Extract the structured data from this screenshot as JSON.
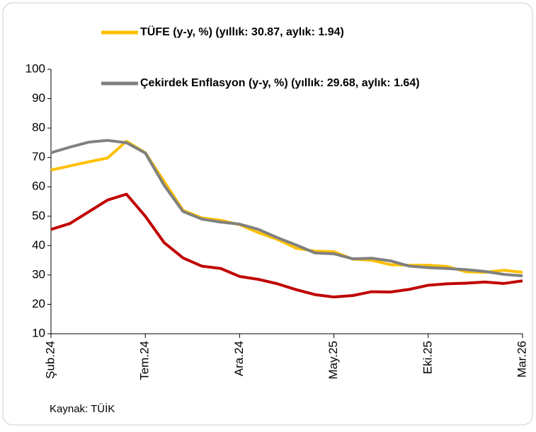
{
  "chart_data": {
    "type": "line",
    "categories": [
      "Şub.24",
      null,
      null,
      null,
      null,
      "Tem.24",
      null,
      null,
      null,
      null,
      "Ara.24",
      null,
      null,
      null,
      null,
      "May.25",
      null,
      null,
      null,
      null,
      "Eki.25",
      null,
      null,
      null,
      null,
      "Mar.26"
    ],
    "series": [
      {
        "name": "TÜFE (y-y, %) (yıllık: 30.87, aylık: 1.94)",
        "color": "#ffc000",
        "values": [
          65.7,
          67.1,
          68.5,
          69.8,
          75.5,
          71.6,
          61.8,
          52.0,
          49.4,
          48.6,
          47.1,
          44.4,
          42.1,
          39.1,
          38.1,
          37.9,
          35.4,
          35.0,
          33.5,
          33.3,
          33.3,
          32.9,
          31.1,
          30.9,
          31.6,
          30.9
        ]
      },
      {
        "name": "Çekirdek Enflasyon (y-y, %) (yıllık: 29.68, aylık: 1.64)",
        "color": "#808080",
        "values": [
          71.6,
          73.5,
          75.2,
          75.8,
          75.0,
          71.5,
          60.5,
          51.6,
          49.0,
          48.0,
          47.3,
          45.5,
          42.7,
          40.2,
          37.5,
          37.2,
          35.5,
          35.7,
          34.8,
          33.0,
          32.5,
          32.2,
          31.8,
          31.2,
          30.2,
          29.7
        ]
      },
      {
        "color": "#c00000",
        "values": [
          45.5,
          47.5,
          51.5,
          55.5,
          57.5,
          50.0,
          41.0,
          35.8,
          33.0,
          32.2,
          29.5,
          28.5,
          27.0,
          25.0,
          23.3,
          22.5,
          23.0,
          24.3,
          24.2,
          25.1,
          26.5,
          27.0,
          27.2,
          27.6,
          27.1,
          28.0
        ]
      }
    ],
    "ylim": [
      10,
      100
    ],
    "yticks": [
      10,
      20,
      30,
      40,
      50,
      60,
      70,
      80,
      90,
      100
    ],
    "source": "Kaynak: TÜİK"
  }
}
